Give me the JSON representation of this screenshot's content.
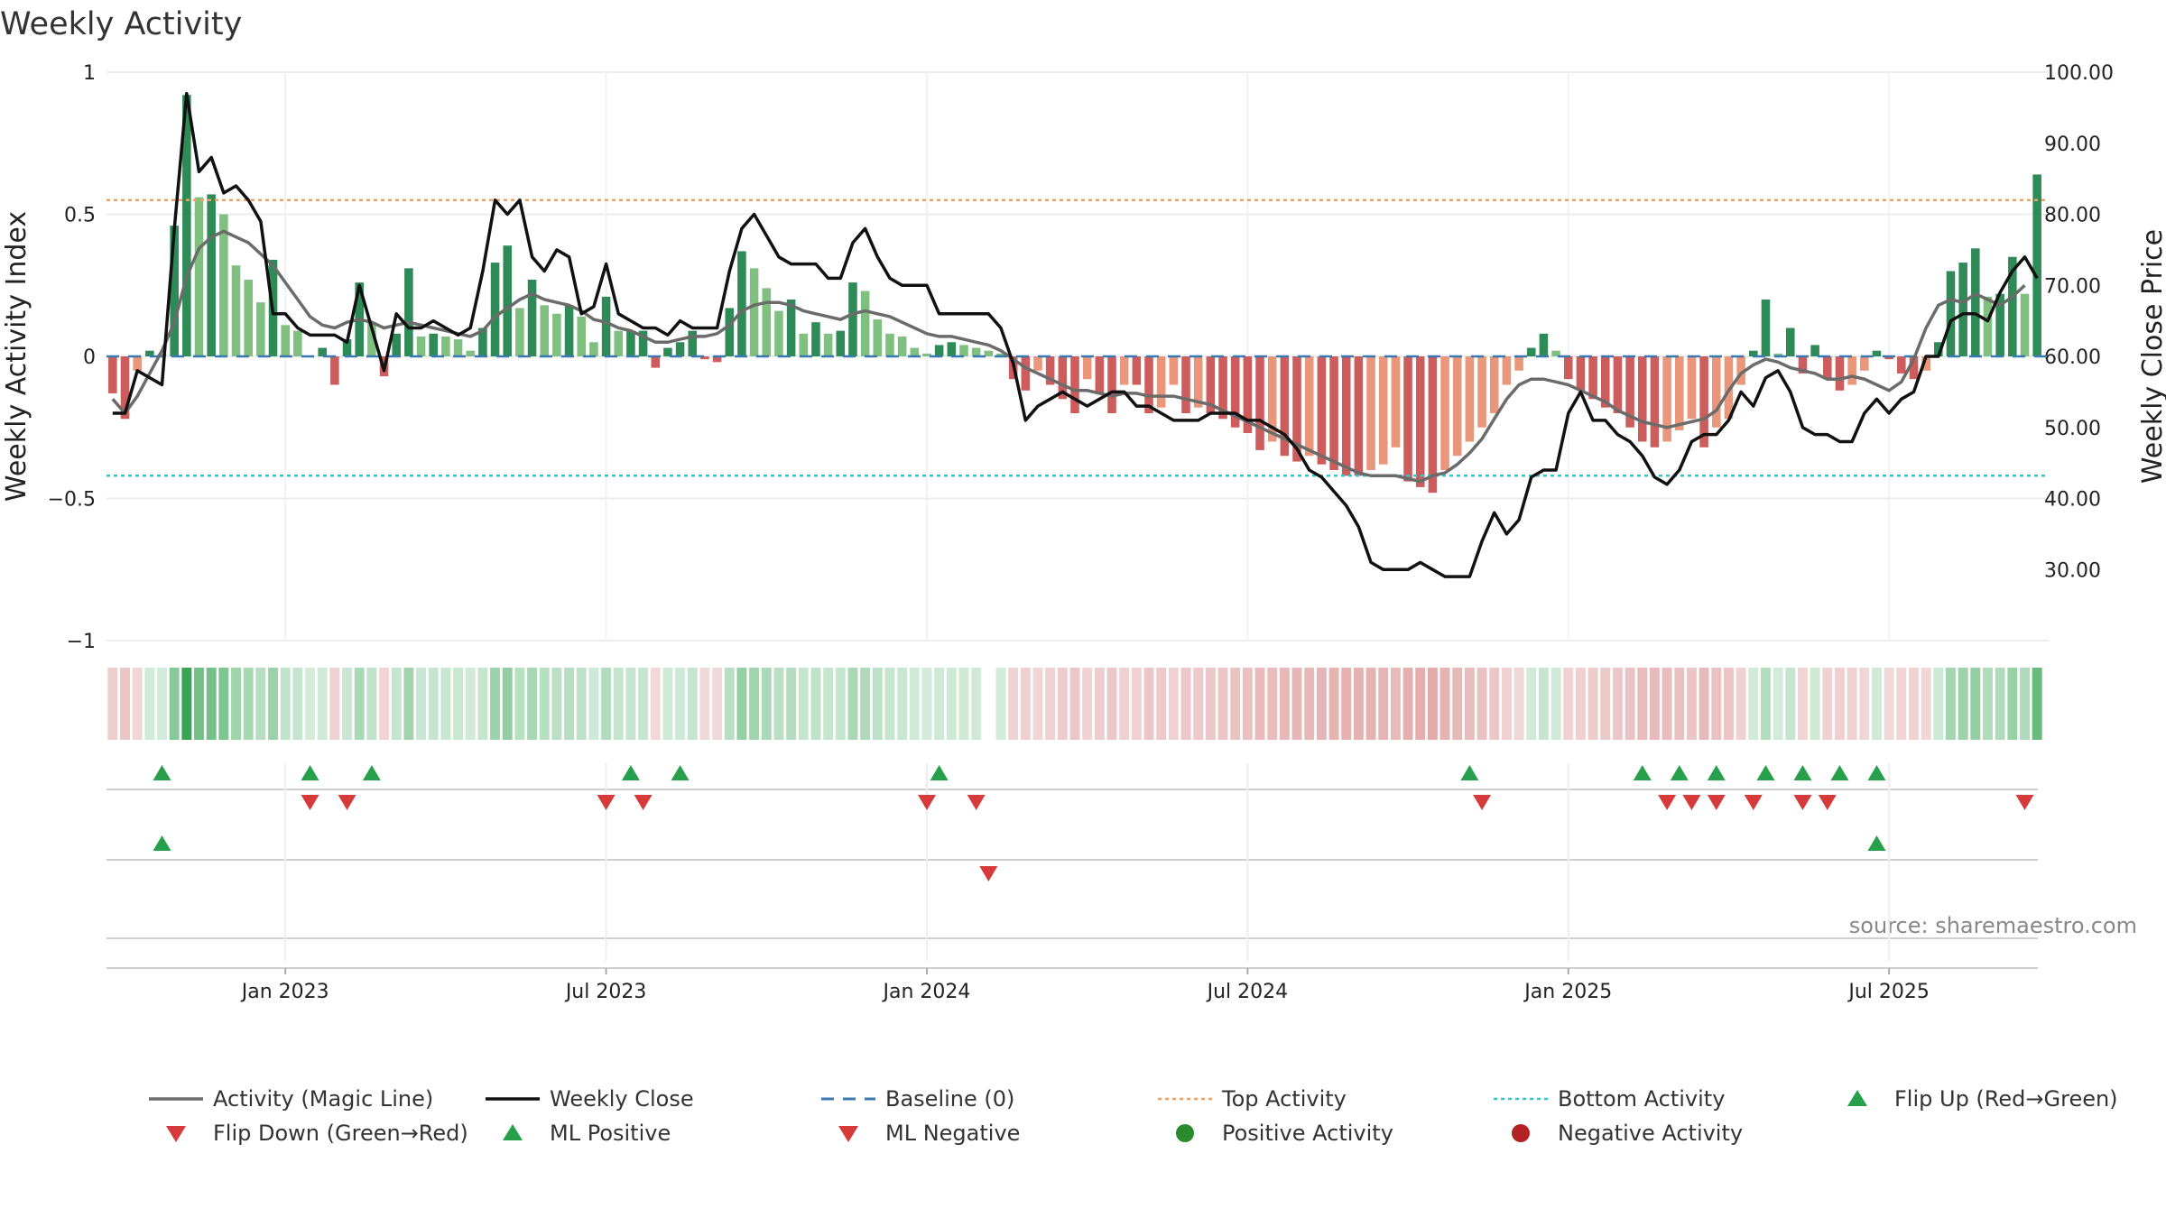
{
  "chart_data": {
    "type": "bar",
    "title": "Weekly Activity",
    "ylabel_left": "Weekly Activity Index",
    "ylabel_right": "Weekly Close Price",
    "source": "source: sharemaestro.com",
    "ylim_left": [
      -1,
      1
    ],
    "ylim_right": [
      20,
      100
    ],
    "left_ticks": [
      {
        "v": 1,
        "label": "1"
      },
      {
        "v": 0.5,
        "label": "0.5"
      },
      {
        "v": 0,
        "label": "0"
      },
      {
        "v": -0.5,
        "label": "−0.5"
      },
      {
        "v": -1,
        "label": "−1"
      }
    ],
    "right_ticks": [
      {
        "v": 100,
        "label": "100.00"
      },
      {
        "v": 90,
        "label": "90.00"
      },
      {
        "v": 80,
        "label": "80.00"
      },
      {
        "v": 70,
        "label": "70.00"
      },
      {
        "v": 60,
        "label": "60.00"
      },
      {
        "v": 50,
        "label": "50.00"
      },
      {
        "v": 40,
        "label": "40.00"
      },
      {
        "v": 30,
        "label": "30.00"
      }
    ],
    "x_ticks": [
      {
        "week": 14,
        "label": "Jan 2023"
      },
      {
        "week": 40,
        "label": "Jul 2023"
      },
      {
        "week": 66,
        "label": "Jan 2024"
      },
      {
        "week": 92,
        "label": "Jul 2024"
      },
      {
        "week": 118,
        "label": "Jan 2025"
      },
      {
        "week": 144,
        "label": "Jul 2025"
      }
    ],
    "weeks": 157,
    "top_activity": 0.55,
    "bottom_activity": -0.42,
    "baseline": 0,
    "activity": [
      -0.13,
      -0.22,
      -0.05,
      0.02,
      0.01,
      0.46,
      0.92,
      0.56,
      0.57,
      0.5,
      0.32,
      0.27,
      0.19,
      0.34,
      0.11,
      0.09,
      0.0,
      0.03,
      -0.1,
      0.06,
      0.26,
      0.12,
      -0.07,
      0.08,
      0.31,
      0.07,
      0.08,
      0.07,
      0.06,
      0.02,
      0.1,
      0.33,
      0.39,
      0.17,
      0.27,
      0.18,
      0.15,
      0.18,
      0.14,
      0.05,
      0.21,
      0.09,
      0.09,
      0.09,
      -0.04,
      0.03,
      0.05,
      0.09,
      -0.01,
      -0.02,
      0.17,
      0.37,
      0.31,
      0.24,
      0.16,
      0.2,
      0.08,
      0.12,
      0.08,
      0.09,
      0.26,
      0.23,
      0.13,
      0.08,
      0.07,
      0.03,
      0.01,
      0.04,
      0.05,
      0.04,
      0.03,
      0.02,
      0.01,
      -0.08,
      -0.12,
      -0.05,
      -0.1,
      -0.15,
      -0.2,
      -0.08,
      -0.13,
      -0.2,
      -0.1,
      -0.1,
      -0.2,
      -0.18,
      -0.1,
      -0.2,
      -0.18,
      -0.2,
      -0.22,
      -0.25,
      -0.27,
      -0.33,
      -0.3,
      -0.35,
      -0.37,
      -0.35,
      -0.38,
      -0.4,
      -0.42,
      -0.42,
      -0.4,
      -0.38,
      -0.32,
      -0.44,
      -0.46,
      -0.48,
      -0.4,
      -0.35,
      -0.3,
      -0.25,
      -0.2,
      -0.1,
      -0.05,
      0.03,
      0.08,
      0.02,
      -0.08,
      -0.12,
      -0.15,
      -0.18,
      -0.2,
      -0.25,
      -0.3,
      -0.32,
      -0.3,
      -0.26,
      -0.22,
      -0.32,
      -0.25,
      -0.22,
      -0.1,
      0.02,
      0.2,
      0.01,
      0.1,
      -0.06,
      0.04,
      -0.08,
      -0.12,
      -0.1,
      -0.05,
      0.02,
      -0.01,
      -0.06,
      -0.08,
      -0.05,
      0.05,
      0.3,
      0.33,
      0.38,
      0.21,
      0.22,
      0.35,
      0.22,
      0.64
    ],
    "magic_line": [
      -0.15,
      -0.2,
      -0.14,
      -0.06,
      0.02,
      0.12,
      0.28,
      0.38,
      0.42,
      0.44,
      0.42,
      0.4,
      0.36,
      0.32,
      0.26,
      0.2,
      0.14,
      0.11,
      0.1,
      0.12,
      0.13,
      0.12,
      0.1,
      0.11,
      0.12,
      0.11,
      0.1,
      0.09,
      0.08,
      0.07,
      0.09,
      0.14,
      0.17,
      0.2,
      0.22,
      0.2,
      0.19,
      0.18,
      0.16,
      0.13,
      0.12,
      0.1,
      0.09,
      0.07,
      0.05,
      0.05,
      0.06,
      0.07,
      0.07,
      0.08,
      0.11,
      0.16,
      0.18,
      0.19,
      0.19,
      0.18,
      0.16,
      0.15,
      0.14,
      0.13,
      0.15,
      0.16,
      0.15,
      0.14,
      0.12,
      0.1,
      0.08,
      0.07,
      0.07,
      0.06,
      0.05,
      0.04,
      0.02,
      -0.01,
      -0.04,
      -0.06,
      -0.08,
      -0.1,
      -0.12,
      -0.12,
      -0.13,
      -0.14,
      -0.13,
      -0.13,
      -0.14,
      -0.14,
      -0.14,
      -0.15,
      -0.16,
      -0.17,
      -0.19,
      -0.21,
      -0.23,
      -0.25,
      -0.27,
      -0.29,
      -0.31,
      -0.33,
      -0.35,
      -0.37,
      -0.39,
      -0.41,
      -0.42,
      -0.42,
      -0.42,
      -0.43,
      -0.44,
      -0.42,
      -0.41,
      -0.38,
      -0.34,
      -0.29,
      -0.22,
      -0.15,
      -0.1,
      -0.08,
      -0.08,
      -0.09,
      -0.1,
      -0.12,
      -0.14,
      -0.16,
      -0.19,
      -0.21,
      -0.23,
      -0.24,
      -0.25,
      -0.24,
      -0.23,
      -0.22,
      -0.19,
      -0.12,
      -0.06,
      -0.03,
      -0.01,
      -0.02,
      -0.04,
      -0.05,
      -0.06,
      -0.08,
      -0.08,
      -0.07,
      -0.08,
      -0.1,
      -0.12,
      -0.09,
      -0.01,
      0.1,
      0.18,
      0.2,
      0.19,
      0.22,
      0.2,
      0.18,
      0.21,
      0.25
    ],
    "weekly_close": [
      52,
      52,
      58,
      57,
      56,
      78,
      97,
      86,
      88,
      83,
      84,
      82,
      79,
      66,
      66,
      64,
      63,
      63,
      63,
      62,
      70,
      64,
      58,
      66,
      64,
      64,
      65,
      64,
      63,
      64,
      72,
      82,
      80,
      82,
      74,
      72,
      75,
      74,
      66,
      67,
      73,
      66,
      65,
      64,
      64,
      63,
      65,
      64,
      64,
      64,
      72,
      78,
      80,
      77,
      74,
      73,
      73,
      73,
      71,
      71,
      76,
      78,
      74,
      71,
      70,
      70,
      70,
      66,
      66,
      66,
      66,
      66,
      64,
      59,
      51,
      53,
      54,
      55,
      54,
      53,
      54,
      55,
      55,
      53,
      53,
      52,
      51,
      51,
      51,
      52,
      52,
      52,
      51,
      51,
      50,
      49,
      47,
      44,
      43,
      41,
      39,
      36,
      31,
      30,
      30,
      30,
      31,
      30,
      29,
      29,
      29,
      34,
      38,
      35,
      37,
      43,
      44,
      44,
      52,
      55,
      51,
      51,
      49,
      48,
      46,
      43,
      42,
      44,
      48,
      49,
      49,
      51,
      55,
      53,
      57,
      58,
      55,
      50,
      49,
      49,
      48,
      48,
      52,
      54,
      52,
      54,
      55,
      60,
      60,
      65,
      66,
      66,
      65,
      69,
      72,
      74,
      71
    ],
    "fast_flip_up": [
      4,
      16,
      21,
      42,
      46,
      67,
      110,
      124,
      127,
      130,
      134,
      137,
      140,
      143
    ],
    "fast_flip_down": [
      16,
      19,
      40,
      43,
      66,
      70,
      111,
      126,
      128,
      130,
      133,
      137,
      139,
      155
    ],
    "ml_positive": [
      4,
      143
    ],
    "ml_negative": [
      71
    ],
    "heat_gap_week": 71
  },
  "legend": [
    {
      "label": "Activity (Magic Line)",
      "kind": "line",
      "color": "#6b6b6b"
    },
    {
      "label": "Weekly Close",
      "kind": "line",
      "color": "#111111"
    },
    {
      "label": "Baseline (0)",
      "kind": "dash",
      "color": "#3a78b0"
    },
    {
      "label": "Top Activity",
      "kind": "dot",
      "color": "#f0a060"
    },
    {
      "label": "Bottom Activity",
      "kind": "dot",
      "color": "#2ec7d0"
    },
    {
      "label": "Flip Up (Red→Green)",
      "kind": "up",
      "color": "#26a04a"
    },
    {
      "label": "Flip Down (Green→Red)",
      "kind": "down",
      "color": "#d63a3a"
    },
    {
      "label": "ML Positive",
      "kind": "up",
      "color": "#26a04a"
    },
    {
      "label": "ML Negative",
      "kind": "down",
      "color": "#d63a3a"
    },
    {
      "label": "Positive Activity",
      "kind": "circle",
      "color": "#2b8a2b"
    },
    {
      "label": "Negative Activity",
      "kind": "circle",
      "color": "#b22222"
    }
  ],
  "colors": {
    "pos_strong": "#2e8b57",
    "pos_light": "#7fbf7f",
    "neg_strong": "#cd5c5c",
    "neg_light": "#e9967a"
  }
}
